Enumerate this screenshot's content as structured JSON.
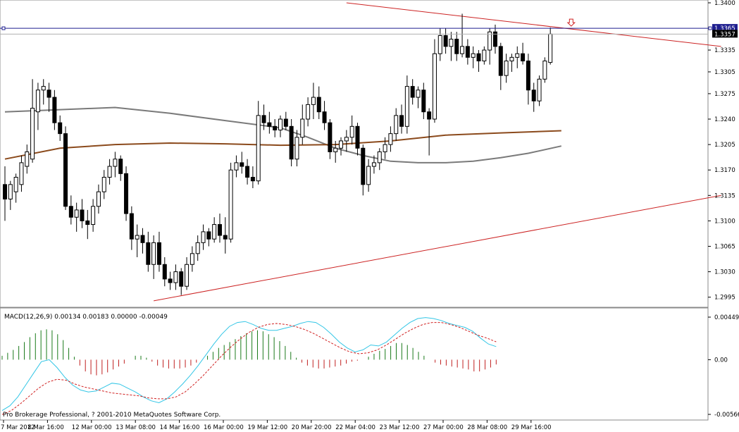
{
  "chart_data": [
    {
      "type": "candlestick",
      "title": "",
      "ylim": [
        1.2985,
        1.34
      ],
      "price_axis_ticks": [
        "1.3400",
        "1.3335",
        "1.3305",
        "1.3275",
        "1.3240",
        "1.3205",
        "1.3170",
        "1.3135",
        "1.3100",
        "1.3065",
        "1.3030",
        "1.2995"
      ],
      "time_axis_ticks": [
        "7 Mar 2012",
        "8 Mar 16:00",
        "12 Mar 00:00",
        "13 Mar 08:00",
        "14 Mar 16:00",
        "16 Mar 00:00",
        "19 Mar 12:00",
        "20 Mar 20:00",
        "22 Mar 04:00",
        "23 Mar 12:00",
        "27 Mar 00:00",
        "28 Mar 08:00",
        "29 Mar 16:00"
      ],
      "price_labels": {
        "ask": "1.3365",
        "bid": "1.3357"
      },
      "candles": [
        {
          "o": 1.315,
          "h": 1.3175,
          "l": 1.31,
          "c": 1.313
        },
        {
          "o": 1.313,
          "h": 1.3155,
          "l": 1.3115,
          "c": 1.315
        },
        {
          "o": 1.314,
          "h": 1.3165,
          "l": 1.3125,
          "c": 1.316
        },
        {
          "o": 1.315,
          "h": 1.319,
          "l": 1.314,
          "c": 1.318
        },
        {
          "o": 1.3175,
          "h": 1.3205,
          "l": 1.3165,
          "c": 1.3195
        },
        {
          "o": 1.3185,
          "h": 1.3295,
          "l": 1.318,
          "c": 1.3255
        },
        {
          "o": 1.325,
          "h": 1.329,
          "l": 1.3225,
          "c": 1.328
        },
        {
          "o": 1.328,
          "h": 1.3295,
          "l": 1.326,
          "c": 1.3285
        },
        {
          "o": 1.328,
          "h": 1.329,
          "l": 1.325,
          "c": 1.327
        },
        {
          "o": 1.327,
          "h": 1.328,
          "l": 1.3225,
          "c": 1.3235
        },
        {
          "o": 1.3235,
          "h": 1.3245,
          "l": 1.321,
          "c": 1.322
        },
        {
          "o": 1.322,
          "h": 1.323,
          "l": 1.3115,
          "c": 1.312
        },
        {
          "o": 1.312,
          "h": 1.3135,
          "l": 1.3095,
          "c": 1.3105
        },
        {
          "o": 1.3105,
          "h": 1.3125,
          "l": 1.3085,
          "c": 1.3115
        },
        {
          "o": 1.3115,
          "h": 1.313,
          "l": 1.309,
          "c": 1.31
        },
        {
          "o": 1.31,
          "h": 1.3115,
          "l": 1.3075,
          "c": 1.3095
        },
        {
          "o": 1.3095,
          "h": 1.313,
          "l": 1.3085,
          "c": 1.312
        },
        {
          "o": 1.312,
          "h": 1.315,
          "l": 1.311,
          "c": 1.314
        },
        {
          "o": 1.314,
          "h": 1.317,
          "l": 1.313,
          "c": 1.316
        },
        {
          "o": 1.316,
          "h": 1.3185,
          "l": 1.315,
          "c": 1.3175
        },
        {
          "o": 1.3175,
          "h": 1.3195,
          "l": 1.316,
          "c": 1.3185
        },
        {
          "o": 1.3185,
          "h": 1.319,
          "l": 1.3155,
          "c": 1.3165
        },
        {
          "o": 1.3165,
          "h": 1.3175,
          "l": 1.31,
          "c": 1.311
        },
        {
          "o": 1.311,
          "h": 1.312,
          "l": 1.306,
          "c": 1.3075
        },
        {
          "o": 1.3075,
          "h": 1.3095,
          "l": 1.305,
          "c": 1.308
        },
        {
          "o": 1.308,
          "h": 1.309,
          "l": 1.3055,
          "c": 1.307
        },
        {
          "o": 1.307,
          "h": 1.3085,
          "l": 1.303,
          "c": 1.304
        },
        {
          "o": 1.304,
          "h": 1.308,
          "l": 1.302,
          "c": 1.307
        },
        {
          "o": 1.307,
          "h": 1.3085,
          "l": 1.303,
          "c": 1.304
        },
        {
          "o": 1.304,
          "h": 1.305,
          "l": 1.301,
          "c": 1.302
        },
        {
          "o": 1.302,
          "h": 1.303,
          "l": 1.3005,
          "c": 1.3015
        },
        {
          "o": 1.3015,
          "h": 1.304,
          "l": 1.3005,
          "c": 1.303
        },
        {
          "o": 1.303,
          "h": 1.3035,
          "l": 1.2998,
          "c": 1.301
        },
        {
          "o": 1.301,
          "h": 1.305,
          "l": 1.3005,
          "c": 1.304
        },
        {
          "o": 1.304,
          "h": 1.3065,
          "l": 1.303,
          "c": 1.3055
        },
        {
          "o": 1.3055,
          "h": 1.308,
          "l": 1.3045,
          "c": 1.307
        },
        {
          "o": 1.307,
          "h": 1.3095,
          "l": 1.306,
          "c": 1.3085
        },
        {
          "o": 1.3085,
          "h": 1.309,
          "l": 1.3065,
          "c": 1.3075
        },
        {
          "o": 1.3075,
          "h": 1.3105,
          "l": 1.307,
          "c": 1.3095
        },
        {
          "o": 1.3095,
          "h": 1.311,
          "l": 1.307,
          "c": 1.308
        },
        {
          "o": 1.308,
          "h": 1.3105,
          "l": 1.3055,
          "c": 1.3075
        },
        {
          "o": 1.3075,
          "h": 1.318,
          "l": 1.307,
          "c": 1.317
        },
        {
          "o": 1.317,
          "h": 1.319,
          "l": 1.316,
          "c": 1.318
        },
        {
          "o": 1.318,
          "h": 1.3195,
          "l": 1.3165,
          "c": 1.3175
        },
        {
          "o": 1.3175,
          "h": 1.3185,
          "l": 1.315,
          "c": 1.316
        },
        {
          "o": 1.316,
          "h": 1.3175,
          "l": 1.3145,
          "c": 1.3155
        },
        {
          "o": 1.3155,
          "h": 1.3265,
          "l": 1.315,
          "c": 1.3245
        },
        {
          "o": 1.3245,
          "h": 1.326,
          "l": 1.3225,
          "c": 1.3235
        },
        {
          "o": 1.3235,
          "h": 1.325,
          "l": 1.322,
          "c": 1.323
        },
        {
          "o": 1.323,
          "h": 1.324,
          "l": 1.3215,
          "c": 1.3225
        },
        {
          "o": 1.3225,
          "h": 1.3245,
          "l": 1.3215,
          "c": 1.324
        },
        {
          "o": 1.324,
          "h": 1.325,
          "l": 1.3225,
          "c": 1.323
        },
        {
          "o": 1.323,
          "h": 1.324,
          "l": 1.3175,
          "c": 1.3185
        },
        {
          "o": 1.3185,
          "h": 1.3225,
          "l": 1.3175,
          "c": 1.3215
        },
        {
          "o": 1.3215,
          "h": 1.326,
          "l": 1.3205,
          "c": 1.324
        },
        {
          "o": 1.324,
          "h": 1.327,
          "l": 1.323,
          "c": 1.326
        },
        {
          "o": 1.326,
          "h": 1.329,
          "l": 1.324,
          "c": 1.327
        },
        {
          "o": 1.327,
          "h": 1.3285,
          "l": 1.324,
          "c": 1.325
        },
        {
          "o": 1.325,
          "h": 1.3265,
          "l": 1.3225,
          "c": 1.3235
        },
        {
          "o": 1.3235,
          "h": 1.324,
          "l": 1.3185,
          "c": 1.3195
        },
        {
          "o": 1.3195,
          "h": 1.321,
          "l": 1.318,
          "c": 1.32
        },
        {
          "o": 1.32,
          "h": 1.3215,
          "l": 1.319,
          "c": 1.321
        },
        {
          "o": 1.321,
          "h": 1.3225,
          "l": 1.3195,
          "c": 1.3215
        },
        {
          "o": 1.3215,
          "h": 1.3245,
          "l": 1.3205,
          "c": 1.323
        },
        {
          "o": 1.323,
          "h": 1.3235,
          "l": 1.319,
          "c": 1.32
        },
        {
          "o": 1.32,
          "h": 1.3205,
          "l": 1.3135,
          "c": 1.315
        },
        {
          "o": 1.315,
          "h": 1.3185,
          "l": 1.314,
          "c": 1.3175
        },
        {
          "o": 1.3175,
          "h": 1.319,
          "l": 1.3165,
          "c": 1.318
        },
        {
          "o": 1.318,
          "h": 1.32,
          "l": 1.317,
          "c": 1.3195
        },
        {
          "o": 1.3195,
          "h": 1.3215,
          "l": 1.3185,
          "c": 1.3205
        },
        {
          "o": 1.3205,
          "h": 1.323,
          "l": 1.3195,
          "c": 1.322
        },
        {
          "o": 1.322,
          "h": 1.3255,
          "l": 1.321,
          "c": 1.3245
        },
        {
          "o": 1.3245,
          "h": 1.326,
          "l": 1.322,
          "c": 1.323
        },
        {
          "o": 1.323,
          "h": 1.33,
          "l": 1.322,
          "c": 1.3285
        },
        {
          "o": 1.3285,
          "h": 1.3295,
          "l": 1.326,
          "c": 1.327
        },
        {
          "o": 1.327,
          "h": 1.3285,
          "l": 1.3255,
          "c": 1.328
        },
        {
          "o": 1.328,
          "h": 1.329,
          "l": 1.324,
          "c": 1.325
        },
        {
          "o": 1.325,
          "h": 1.3255,
          "l": 1.319,
          "c": 1.324
        },
        {
          "o": 1.324,
          "h": 1.335,
          "l": 1.3235,
          "c": 1.333
        },
        {
          "o": 1.333,
          "h": 1.3365,
          "l": 1.332,
          "c": 1.3355
        },
        {
          "o": 1.3355,
          "h": 1.3365,
          "l": 1.333,
          "c": 1.334
        },
        {
          "o": 1.334,
          "h": 1.336,
          "l": 1.332,
          "c": 1.335
        },
        {
          "o": 1.335,
          "h": 1.336,
          "l": 1.332,
          "c": 1.333
        },
        {
          "o": 1.333,
          "h": 1.3385,
          "l": 1.3325,
          "c": 1.334
        },
        {
          "o": 1.334,
          "h": 1.335,
          "l": 1.3315,
          "c": 1.3325
        },
        {
          "o": 1.3325,
          "h": 1.334,
          "l": 1.331,
          "c": 1.333
        },
        {
          "o": 1.333,
          "h": 1.3335,
          "l": 1.3305,
          "c": 1.332
        },
        {
          "o": 1.332,
          "h": 1.334,
          "l": 1.3315,
          "c": 1.3335
        },
        {
          "o": 1.3335,
          "h": 1.3365,
          "l": 1.3315,
          "c": 1.336
        },
        {
          "o": 1.336,
          "h": 1.337,
          "l": 1.333,
          "c": 1.334
        },
        {
          "o": 1.334,
          "h": 1.3345,
          "l": 1.328,
          "c": 1.33
        },
        {
          "o": 1.33,
          "h": 1.333,
          "l": 1.329,
          "c": 1.332
        },
        {
          "o": 1.332,
          "h": 1.333,
          "l": 1.3305,
          "c": 1.3325
        },
        {
          "o": 1.3325,
          "h": 1.334,
          "l": 1.331,
          "c": 1.333
        },
        {
          "o": 1.333,
          "h": 1.3345,
          "l": 1.3315,
          "c": 1.332
        },
        {
          "o": 1.332,
          "h": 1.333,
          "l": 1.326,
          "c": 1.328
        },
        {
          "o": 1.328,
          "h": 1.329,
          "l": 1.325,
          "c": 1.3265
        },
        {
          "o": 1.3265,
          "h": 1.33,
          "l": 1.3258,
          "c": 1.3295
        },
        {
          "o": 1.3295,
          "h": 1.3325,
          "l": 1.329,
          "c": 1.332
        },
        {
          "o": 1.3318,
          "h": 1.3366,
          "l": 1.3315,
          "c": 1.3357
        }
      ],
      "moving_averages": [
        {
          "color": "#7a7a7a",
          "points": [
            [
              0,
              1.325
            ],
            [
              10,
              1.3253
            ],
            [
              20,
              1.3256
            ],
            [
              30,
              1.3248
            ],
            [
              40,
              1.3238
            ],
            [
              50,
              1.3228
            ],
            [
              55,
              1.3215
            ],
            [
              60,
              1.32
            ],
            [
              65,
              1.319
            ],
            [
              70,
              1.3182
            ],
            [
              75,
              1.318
            ],
            [
              80,
              1.318
            ],
            [
              85,
              1.3182
            ],
            [
              90,
              1.3187
            ],
            [
              95,
              1.3193
            ],
            [
              101,
              1.3203
            ]
          ]
        },
        {
          "color": "#8b4a1c",
          "points": [
            [
              0,
              1.3185
            ],
            [
              10,
              1.32
            ],
            [
              20,
              1.3205
            ],
            [
              30,
              1.3207
            ],
            [
              40,
              1.3206
            ],
            [
              50,
              1.3204
            ],
            [
              60,
              1.3205
            ],
            [
              70,
              1.321
            ],
            [
              80,
              1.3218
            ],
            [
              90,
              1.3221
            ],
            [
              101,
              1.3224
            ]
          ]
        }
      ],
      "trendlines": [
        {
          "name": "upper",
          "color": "#cc2222",
          "from": [
            62,
            1.34
          ],
          "to": [
            130,
            1.334
          ]
        },
        {
          "name": "lower",
          "color": "#cc2222",
          "from": [
            27,
            1.299
          ],
          "to": [
            130,
            1.3135
          ]
        }
      ],
      "horizontal_line": {
        "value": 1.3365,
        "color": "#1f1f8f"
      },
      "signal_arrow_index": 101
    },
    {
      "type": "bar",
      "title": "MACD(12,26,9) 0.00134 0.00183 0.00000 -0.00049",
      "ylim": [
        -0.00566,
        0.00449
      ],
      "axis_ticks": [
        "0.00449",
        "0.00",
        "-0.00566"
      ],
      "histogram": [
        0.0004,
        0.0007,
        0.001,
        0.0014,
        0.0018,
        0.0023,
        0.0027,
        0.003,
        0.0031,
        0.003,
        0.0026,
        0.002,
        0.0012,
        0.0003,
        -0.0006,
        -0.0012,
        -0.0015,
        -0.0016,
        -0.0015,
        -0.0013,
        -0.001,
        -0.0007,
        -0.0004,
        0.0,
        0.0004,
        0.0004,
        0.0002,
        -0.0002,
        -0.0006,
        -0.0008,
        -0.0009,
        -0.0009,
        -0.0009,
        -0.0008,
        -0.0006,
        -0.0003,
        0.0,
        0.0004,
        0.0008,
        0.0012,
        0.0015,
        0.0018,
        0.0021,
        0.0024,
        0.0027,
        0.0029,
        0.003,
        0.0029,
        0.0026,
        0.0023,
        0.0019,
        0.0014,
        0.0008,
        0.0002,
        -0.0003,
        -0.0006,
        -0.0008,
        -0.0009,
        -0.0009,
        -0.0008,
        -0.0007,
        -0.0006,
        -0.0004,
        -0.0002,
        -0.0001,
        0.0,
        0.0003,
        0.0006,
        0.0009,
        0.0011,
        0.0014,
        0.0017,
        0.0017,
        0.0015,
        0.0012,
        0.0008,
        0.0004,
        0.0,
        -0.0003,
        -0.0005,
        -0.0006,
        -0.0007,
        -0.0008,
        -0.0009,
        -0.001,
        -0.0012,
        -0.0012,
        -0.001,
        -0.0008,
        -0.00049
      ],
      "macd_line": [
        -0.0052,
        -0.0047,
        -0.0038,
        -0.0026,
        -0.0014,
        -0.0002,
        0.0,
        -0.0008,
        -0.0018,
        -0.0026,
        -0.0031,
        -0.0033,
        -0.0032,
        -0.0028,
        -0.0024,
        -0.0025,
        -0.0029,
        -0.0033,
        -0.0038,
        -0.0042,
        -0.0044,
        -0.004,
        -0.0033,
        -0.0025,
        -0.0016,
        -0.0006,
        0.0005,
        0.0016,
        0.0026,
        0.0034,
        0.0038,
        0.0039,
        0.0036,
        0.0032,
        0.003,
        0.003,
        0.0032,
        0.0034,
        0.0037,
        0.0039,
        0.0038,
        0.0033,
        0.0026,
        0.0018,
        0.0012,
        0.0008,
        0.001,
        0.0015,
        0.0014,
        0.0018,
        0.0025,
        0.0032,
        0.0038,
        0.0042,
        0.0043,
        0.0042,
        0.004,
        0.0037,
        0.0035,
        0.0033,
        0.0029,
        0.0022,
        0.0016,
        0.00134
      ],
      "signal_line": [
        -0.0056,
        -0.0052,
        -0.0045,
        -0.0037,
        -0.0029,
        -0.0023,
        -0.002,
        -0.0021,
        -0.0025,
        -0.0028,
        -0.003,
        -0.0032,
        -0.0034,
        -0.0035,
        -0.0036,
        -0.0037,
        -0.0039,
        -0.004,
        -0.004,
        -0.0038,
        -0.0033,
        -0.0025,
        -0.0016,
        -0.0006,
        0.0004,
        0.0013,
        0.0021,
        0.0028,
        0.0033,
        0.0036,
        0.0037,
        0.0036,
        0.0034,
        0.0031,
        0.0027,
        0.0022,
        0.0017,
        0.0012,
        0.0008,
        0.0006,
        0.0007,
        0.001,
        0.0015,
        0.0021,
        0.0027,
        0.0032,
        0.0036,
        0.0038,
        0.0038,
        0.0036,
        0.0033,
        0.0029,
        0.0025,
        0.0022,
        0.00183
      ]
    }
  ],
  "footer": {
    "copyright": "Pro Brokerage Professional, ? 2001-2010 MetaQuotes Software Corp."
  }
}
